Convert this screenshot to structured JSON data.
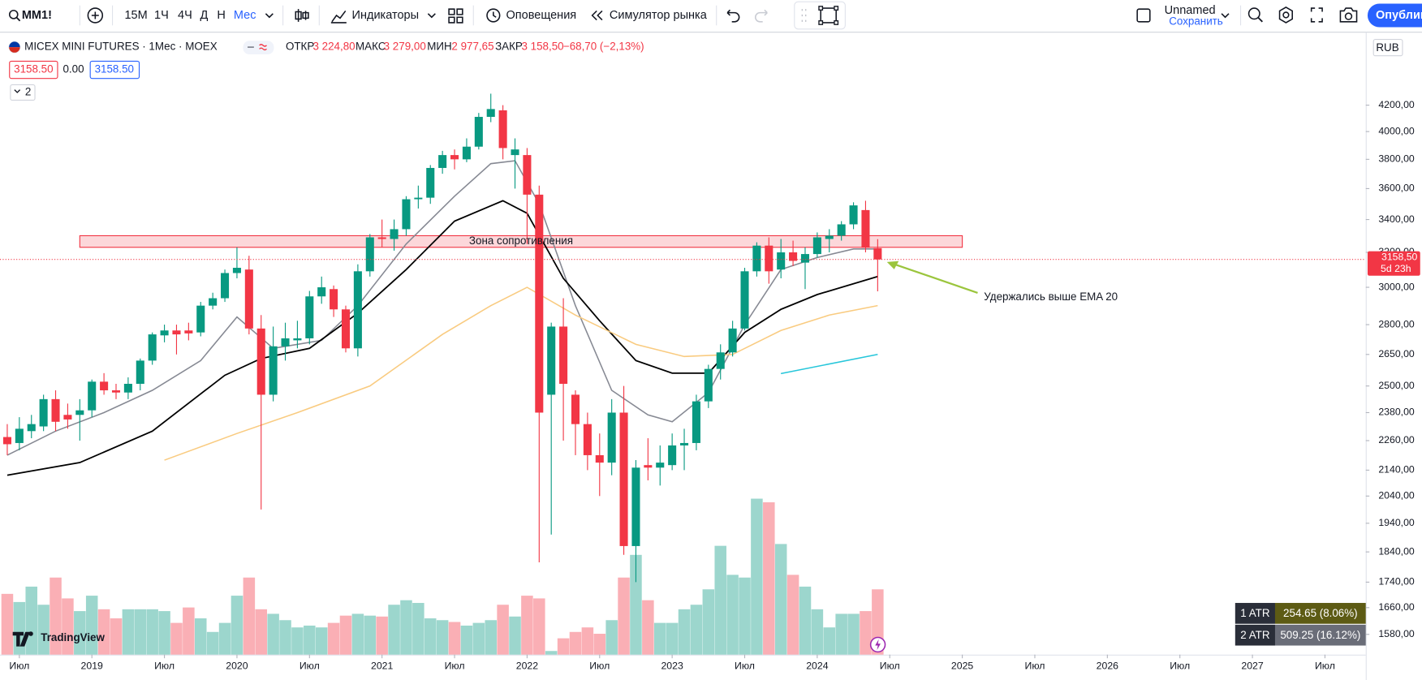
{
  "toolbar": {
    "symbol": "MM1!",
    "intervals": [
      "15М",
      "1Ч",
      "4Ч",
      "Д",
      "Н",
      "Мес"
    ],
    "active_interval": 5,
    "indicators": "Индикаторы",
    "alerts": "Оповещения",
    "replay": "Симулятор рынка",
    "layout_name": "Unnamed",
    "layout_status": "Сохранить",
    "publish": "Опублик"
  },
  "legend": {
    "title": "MICEX MINI FUTURES · 1Мес · MOEX",
    "open_label": "ОТКР",
    "open": "3 224,80",
    "high_label": "МАКС",
    "high": "3 279,00",
    "low_label": "МИН",
    "low": "2 977,65",
    "close_label": "ЗАКР",
    "close": "3 158,50",
    "change": "−68,70 (−2,13%)",
    "bid": "3158.50",
    "spread": "0.00",
    "ask": "3158.50",
    "indicator_count": "2"
  },
  "currency": "RUB",
  "last_price": {
    "value": 3158.5,
    "label": "3158,50",
    "countdown": "5d 23h"
  },
  "atr": [
    {
      "label": "1 ATR",
      "value": "254.65 (8.06%)"
    },
    {
      "label": "2 ATR",
      "value": "509.25 (16.12%)"
    }
  ],
  "watermark": "TradingView",
  "chart_data": {
    "type": "candlestick",
    "log_scale": true,
    "grid": false,
    "up_color": "#089981",
    "down_color": "#f23645",
    "x": [
      "2018-06",
      "2018-07",
      "2018-08",
      "2018-09",
      "2018-10",
      "2018-11",
      "2018-12",
      "2019-01",
      "2019-02",
      "2019-03",
      "2019-04",
      "2019-05",
      "2019-06",
      "2019-07",
      "2019-08",
      "2019-09",
      "2019-10",
      "2019-11",
      "2019-12",
      "2020-01",
      "2020-02",
      "2020-03",
      "2020-04",
      "2020-05",
      "2020-06",
      "2020-07",
      "2020-08",
      "2020-09",
      "2020-10",
      "2020-11",
      "2020-12",
      "2021-01",
      "2021-02",
      "2021-03",
      "2021-04",
      "2021-05",
      "2021-06",
      "2021-07",
      "2021-08",
      "2021-09",
      "2021-10",
      "2021-11",
      "2021-12",
      "2022-01",
      "2022-02",
      "2022-03",
      "2022-04",
      "2022-05",
      "2022-06",
      "2022-07",
      "2022-08",
      "2022-09",
      "2022-10",
      "2022-11",
      "2022-12",
      "2023-01",
      "2023-02",
      "2023-03",
      "2023-04",
      "2023-05",
      "2023-06",
      "2023-07",
      "2023-08",
      "2023-09",
      "2023-10",
      "2023-11",
      "2023-12",
      "2024-01",
      "2024-02",
      "2024-03",
      "2024-04",
      "2024-05",
      "2024-06"
    ],
    "open": [
      2275,
      2250,
      2300,
      2320,
      2440,
      2370,
      2370,
      2390,
      2520,
      2480,
      2470,
      2510,
      2620,
      2745,
      2770,
      2770,
      2760,
      2900,
      2940,
      3080,
      3100,
      2780,
      2460,
      2690,
      2720,
      2730,
      2950,
      2990,
      2880,
      2680,
      3090,
      3290,
      3280,
      3340,
      3530,
      3540,
      3740,
      3830,
      3800,
      3890,
      4110,
      4160,
      3830,
      3830,
      3560,
      2460,
      2790,
      2460,
      2330,
      2200,
      2170,
      2380,
      1860,
      2160,
      2150,
      2160,
      2240,
      2250,
      2430,
      2580,
      2660,
      2780,
      3090,
      3240,
      3100,
      3200,
      3140,
      3190,
      3280,
      3300,
      3370,
      3460,
      3224.8
    ],
    "high": [
      2330,
      2360,
      2370,
      2460,
      2480,
      2420,
      2440,
      2530,
      2560,
      2510,
      2540,
      2630,
      2760,
      2800,
      2800,
      2810,
      2920,
      2970,
      3100,
      3230,
      3180,
      2850,
      2790,
      2810,
      2820,
      2980,
      3060,
      3010,
      2900,
      3130,
      3310,
      3400,
      3400,
      3550,
      3620,
      3760,
      3860,
      3870,
      3950,
      4140,
      4290,
      4200,
      3950,
      3880,
      3620,
      2810,
      2940,
      2480,
      2380,
      2290,
      2440,
      2500,
      2180,
      2270,
      2240,
      2290,
      2310,
      2460,
      2600,
      2700,
      2820,
      3110,
      3260,
      3290,
      3280,
      3270,
      3230,
      3320,
      3340,
      3390,
      3510,
      3520,
      3279
    ],
    "low": [
      2200,
      2220,
      2270,
      2300,
      2300,
      2310,
      2260,
      2360,
      2460,
      2440,
      2440,
      2480,
      2600,
      2710,
      2650,
      2720,
      2740,
      2880,
      2920,
      3050,
      2750,
      1990,
      2430,
      2620,
      2680,
      2700,
      2910,
      2840,
      2660,
      2640,
      3060,
      3230,
      3210,
      3300,
      3470,
      3500,
      3700,
      3730,
      3780,
      3870,
      4070,
      3800,
      3600,
      3250,
      1805,
      1900,
      2260,
      2200,
      2140,
      2040,
      2120,
      1830,
      1740,
      2100,
      2080,
      2140,
      2140,
      2220,
      2400,
      2530,
      2640,
      2770,
      3060,
      3020,
      3050,
      3120,
      2990,
      3170,
      3200,
      3270,
      3340,
      3200,
      2977.65
    ],
    "close": [
      2245,
      2310,
      2330,
      2440,
      2340,
      2350,
      2390,
      2520,
      2480,
      2470,
      2510,
      2620,
      2750,
      2770,
      2750,
      2755,
      2900,
      2940,
      3080,
      3110,
      2780,
      2460,
      2690,
      2730,
      2730,
      2950,
      3000,
      2880,
      2680,
      3090,
      3290,
      3280,
      3340,
      3530,
      3540,
      3740,
      3830,
      3800,
      3890,
      4110,
      4170,
      3880,
      3870,
      3560,
      2380,
      2790,
      2510,
      2330,
      2200,
      2170,
      2380,
      1860,
      2150,
      2150,
      2170,
      2240,
      2250,
      2430,
      2580,
      2660,
      2780,
      3090,
      3240,
      3090,
      3200,
      3150,
      3190,
      3290,
      3300,
      3370,
      3490,
      3227,
      3158.5
    ],
    "volume": [
      67,
      58,
      75,
      55,
      85,
      62,
      48,
      65,
      50,
      40,
      50,
      50,
      50,
      48,
      35,
      52,
      40,
      25,
      35,
      65,
      85,
      50,
      45,
      38,
      30,
      32,
      30,
      35,
      43,
      45,
      43,
      42,
      55,
      60,
      57,
      40,
      38,
      36,
      32,
      35,
      38,
      55,
      42,
      65,
      62,
      4,
      18,
      25,
      30,
      23,
      38,
      85,
      110,
      60,
      35,
      35,
      50,
      55,
      72,
      120,
      88,
      85,
      172,
      168,
      122,
      88,
      75,
      50,
      30,
      45,
      45,
      48,
      72
    ],
    "series": [
      {
        "color": "#868993",
        "x": [
          "2018-06",
          "2018-10",
          "2019-02",
          "2019-06",
          "2019-10",
          "2020-01",
          "2020-04",
          "2020-08",
          "2020-11",
          "2021-03",
          "2021-07",
          "2021-10",
          "2021-12",
          "2022-02",
          "2022-05",
          "2022-08",
          "2022-11",
          "2023-01",
          "2023-04",
          "2023-07",
          "2023-10",
          "2024-01",
          "2024-04",
          "2024-06"
        ],
        "values": [
          2200,
          2300,
          2380,
          2480,
          2620,
          2840,
          2680,
          2720,
          2900,
          3250,
          3550,
          3770,
          3790,
          3500,
          2900,
          2480,
          2370,
          2340,
          2470,
          2800,
          3100,
          3170,
          3220,
          3220
        ]
      },
      {
        "color": "#000000",
        "x": [
          "2018-06",
          "2018-12",
          "2019-06",
          "2019-12",
          "2020-03",
          "2020-07",
          "2020-11",
          "2021-03",
          "2021-07",
          "2021-11",
          "2022-01",
          "2022-04",
          "2022-07",
          "2022-10",
          "2023-01",
          "2023-04",
          "2023-07",
          "2023-10",
          "2024-01",
          "2024-06"
        ],
        "values": [
          2120,
          2170,
          2300,
          2550,
          2630,
          2680,
          2860,
          3100,
          3390,
          3520,
          3440,
          3050,
          2820,
          2620,
          2560,
          2560,
          2760,
          2880,
          2960,
          3060
        ]
      },
      {
        "color": "#f9cb80",
        "x": [
          "2019-07",
          "2020-01",
          "2020-06",
          "2020-12",
          "2021-06",
          "2021-10",
          "2022-01",
          "2022-05",
          "2022-10",
          "2023-02",
          "2023-06",
          "2023-10",
          "2024-02",
          "2024-06"
        ],
        "values": [
          2180,
          2290,
          2380,
          2500,
          2750,
          2900,
          3000,
          2850,
          2700,
          2640,
          2650,
          2770,
          2850,
          2900
        ]
      },
      {
        "color": "#26c6da",
        "x": [
          "2023-10",
          "2024-06"
        ],
        "values": [
          2558,
          2650
        ]
      }
    ],
    "annotations": [
      {
        "text": "Зона сопротивления",
        "x": [
          "2018-12",
          "2025-01"
        ],
        "y": [
          3230,
          3300
        ]
      },
      {
        "text": "Удержались выше EMA 20"
      }
    ],
    "xlim": [
      "2018-06",
      "2027-10"
    ],
    "xticks": [
      {
        "value": "2018-07",
        "label": "Июл"
      },
      {
        "value": "2019-01",
        "label": "2019"
      },
      {
        "value": "2019-07",
        "label": "Июл"
      },
      {
        "value": "2020-01",
        "label": "2020"
      },
      {
        "value": "2020-07",
        "label": "Июл"
      },
      {
        "value": "2021-01",
        "label": "2021"
      },
      {
        "value": "2021-07",
        "label": "Июл"
      },
      {
        "value": "2022-01",
        "label": "2022"
      },
      {
        "value": "2022-07",
        "label": "Июл"
      },
      {
        "value": "2023-01",
        "label": "2023"
      },
      {
        "value": "2023-07",
        "label": "Июл"
      },
      {
        "value": "2024-01",
        "label": "2024"
      },
      {
        "value": "2024-07",
        "label": "Июл"
      },
      {
        "value": "2025-01",
        "label": "2025"
      },
      {
        "value": "2025-07",
        "label": "Июл"
      },
      {
        "value": "2026-01",
        "label": "2026"
      },
      {
        "value": "2026-07",
        "label": "Июл"
      },
      {
        "value": "2027-01",
        "label": "2027"
      },
      {
        "value": "2027-07",
        "label": "Июл"
      }
    ],
    "ylim": [
      1522,
      4786
    ],
    "yticks": [
      {
        "value": 4200,
        "label": "4200,00"
      },
      {
        "value": 4000,
        "label": "4000,00"
      },
      {
        "value": 3800,
        "label": "3800,00"
      },
      {
        "value": 3600,
        "label": "3600,00"
      },
      {
        "value": 3400,
        "label": "3400,00"
      },
      {
        "value": 3200,
        "label": "3200,00"
      },
      {
        "value": 3000,
        "label": "3000,00"
      },
      {
        "value": 2800,
        "label": "2800,00"
      },
      {
        "value": 2650,
        "label": "2650,00"
      },
      {
        "value": 2500,
        "label": "2500,00"
      },
      {
        "value": 2380,
        "label": "2380,00"
      },
      {
        "value": 2260,
        "label": "2260,00"
      },
      {
        "value": 2140,
        "label": "2140,00"
      },
      {
        "value": 2040,
        "label": "2040,00"
      },
      {
        "value": 1940,
        "label": "1940,00"
      },
      {
        "value": 1840,
        "label": "1840,00"
      },
      {
        "value": 1740,
        "label": "1740,00"
      },
      {
        "value": 1660,
        "label": "1660,00"
      },
      {
        "value": 1580,
        "label": "1580,00"
      }
    ]
  }
}
